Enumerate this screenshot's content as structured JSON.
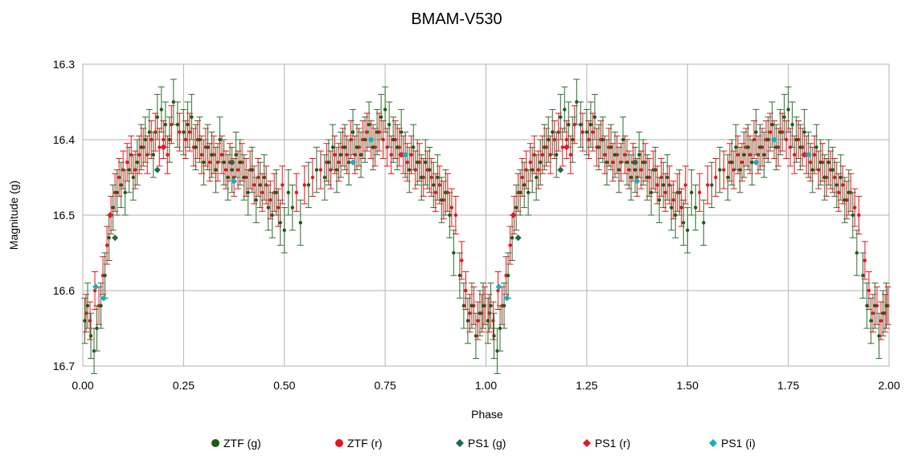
{
  "chart_data": {
    "type": "scatter",
    "title": "BMAM-V530",
    "xlabel": "Phase",
    "ylabel": "Magnitude (g)",
    "xlim": [
      0.0,
      2.0
    ],
    "ylim": [
      16.3,
      16.7
    ],
    "y_inverted": true,
    "grid": true,
    "legend_position": "bottom",
    "x_tick_labels": [
      "0.00",
      "0.25",
      "0.50",
      "0.75",
      "1.00",
      "1.25",
      "1.50",
      "1.75",
      "2.00"
    ],
    "x_ticks": [
      0.0,
      0.25,
      0.5,
      0.75,
      1.0,
      1.25,
      1.5,
      1.75,
      2.0
    ],
    "y_tick_labels": [
      "16.3",
      "16.4",
      "16.5",
      "16.6",
      "16.7"
    ],
    "y_ticks": [
      16.3,
      16.4,
      16.5,
      16.6,
      16.7
    ],
    "phase_repeated": true,
    "series": [
      {
        "name": "ZTF (g)",
        "marker": "circle",
        "color": "#1a5c1a",
        "x": [
          0.005,
          0.012,
          0.02,
          0.028,
          0.035,
          0.045,
          0.055,
          0.065,
          0.075,
          0.085,
          0.095,
          0.105,
          0.115,
          0.125,
          0.135,
          0.145,
          0.155,
          0.165,
          0.175,
          0.185,
          0.195,
          0.205,
          0.215,
          0.225,
          0.235,
          0.25,
          0.26,
          0.27,
          0.28,
          0.29,
          0.3,
          0.31,
          0.32,
          0.33,
          0.34,
          0.35,
          0.36,
          0.37,
          0.38,
          0.39,
          0.4,
          0.41,
          0.42,
          0.43,
          0.44,
          0.45,
          0.46,
          0.47,
          0.48,
          0.49,
          0.5,
          0.51,
          0.52,
          0.54,
          0.56,
          0.58,
          0.6,
          0.61,
          0.62,
          0.63,
          0.64,
          0.65,
          0.66,
          0.67,
          0.68,
          0.69,
          0.7,
          0.71,
          0.72,
          0.73,
          0.74,
          0.75,
          0.76,
          0.77,
          0.78,
          0.79,
          0.8,
          0.81,
          0.82,
          0.83,
          0.84,
          0.85,
          0.86,
          0.87,
          0.88,
          0.89,
          0.9,
          0.91,
          0.92,
          0.935,
          0.945,
          0.955,
          0.965,
          0.975,
          0.985,
          0.993
        ],
        "y": [
          16.64,
          16.62,
          16.66,
          16.68,
          16.65,
          16.62,
          16.58,
          16.53,
          16.49,
          16.47,
          16.46,
          16.47,
          16.44,
          16.45,
          16.43,
          16.41,
          16.4,
          16.39,
          16.42,
          16.37,
          16.36,
          16.38,
          16.4,
          16.35,
          16.38,
          16.39,
          16.38,
          16.37,
          16.41,
          16.4,
          16.43,
          16.41,
          16.42,
          16.44,
          16.4,
          16.43,
          16.45,
          16.44,
          16.42,
          16.43,
          16.45,
          16.47,
          16.44,
          16.48,
          16.46,
          16.45,
          16.49,
          16.5,
          16.47,
          16.51,
          16.52,
          16.47,
          16.49,
          16.51,
          16.46,
          16.44,
          16.45,
          16.43,
          16.41,
          16.44,
          16.42,
          16.41,
          16.43,
          16.39,
          16.41,
          16.42,
          16.4,
          16.38,
          16.41,
          16.39,
          16.37,
          16.36,
          16.38,
          16.4,
          16.41,
          16.39,
          16.42,
          16.44,
          16.41,
          16.43,
          16.45,
          16.43,
          16.44,
          16.46,
          16.45,
          16.48,
          16.47,
          16.5,
          16.55,
          16.58,
          16.62,
          16.64,
          16.62,
          16.66,
          16.63,
          16.62
        ],
        "err": 0.03
      },
      {
        "name": "ZTF (r)",
        "marker": "circle",
        "color": "#e8141c",
        "x": [
          0.008,
          0.018,
          0.03,
          0.04,
          0.05,
          0.06,
          0.07,
          0.08,
          0.09,
          0.1,
          0.11,
          0.12,
          0.13,
          0.14,
          0.15,
          0.16,
          0.17,
          0.18,
          0.19,
          0.2,
          0.21,
          0.22,
          0.24,
          0.255,
          0.265,
          0.275,
          0.285,
          0.295,
          0.305,
          0.315,
          0.325,
          0.335,
          0.345,
          0.355,
          0.365,
          0.375,
          0.385,
          0.395,
          0.405,
          0.415,
          0.425,
          0.435,
          0.445,
          0.455,
          0.465,
          0.475,
          0.485,
          0.495,
          0.53,
          0.55,
          0.57,
          0.59,
          0.605,
          0.615,
          0.625,
          0.635,
          0.645,
          0.655,
          0.665,
          0.675,
          0.685,
          0.695,
          0.705,
          0.715,
          0.725,
          0.735,
          0.745,
          0.755,
          0.765,
          0.775,
          0.785,
          0.795,
          0.805,
          0.815,
          0.825,
          0.835,
          0.845,
          0.855,
          0.865,
          0.875,
          0.885,
          0.895,
          0.905,
          0.915,
          0.925,
          0.94,
          0.95,
          0.96,
          0.97,
          0.98,
          0.99,
          0.997
        ],
        "y": [
          16.63,
          16.64,
          16.6,
          16.62,
          16.58,
          16.54,
          16.5,
          16.47,
          16.45,
          16.44,
          16.43,
          16.42,
          16.44,
          16.42,
          16.41,
          16.42,
          16.4,
          16.39,
          16.41,
          16.4,
          16.42,
          16.38,
          16.39,
          16.4,
          16.39,
          16.41,
          16.4,
          16.42,
          16.41,
          16.43,
          16.42,
          16.43,
          16.42,
          16.44,
          16.43,
          16.45,
          16.44,
          16.43,
          16.45,
          16.44,
          16.46,
          16.45,
          16.47,
          16.46,
          16.48,
          16.47,
          16.49,
          16.46,
          16.47,
          16.46,
          16.45,
          16.44,
          16.43,
          16.44,
          16.42,
          16.43,
          16.41,
          16.42,
          16.4,
          16.42,
          16.41,
          16.4,
          16.39,
          16.4,
          16.41,
          16.39,
          16.4,
          16.41,
          16.42,
          16.4,
          16.41,
          16.42,
          16.43,
          16.42,
          16.44,
          16.43,
          16.45,
          16.44,
          16.45,
          16.47,
          16.46,
          16.48,
          16.47,
          16.49,
          16.5,
          16.56,
          16.6,
          16.63,
          16.62,
          16.64,
          16.63,
          16.62
        ],
        "err": 0.025
      },
      {
        "name": "PS1 (g)",
        "marker": "diamond",
        "color": "#1a6b4a",
        "x": [
          0.08,
          0.185,
          0.37
        ],
        "y": [
          16.53,
          16.44,
          16.43
        ],
        "err": 0
      },
      {
        "name": "PS1 (r)",
        "marker": "diamond",
        "color": "#e01a2a",
        "x": [
          0.068,
          0.2,
          0.79
        ],
        "y": [
          16.5,
          16.41,
          16.42
        ],
        "err": 0
      },
      {
        "name": "PS1 (i)",
        "marker": "diamond",
        "color": "#1ab0b8",
        "x": [
          0.032,
          0.052,
          0.375,
          0.67,
          0.715,
          0.8
        ],
        "y": [
          16.595,
          16.61,
          16.455,
          16.43,
          16.4,
          16.42
        ],
        "err": 0
      }
    ]
  }
}
